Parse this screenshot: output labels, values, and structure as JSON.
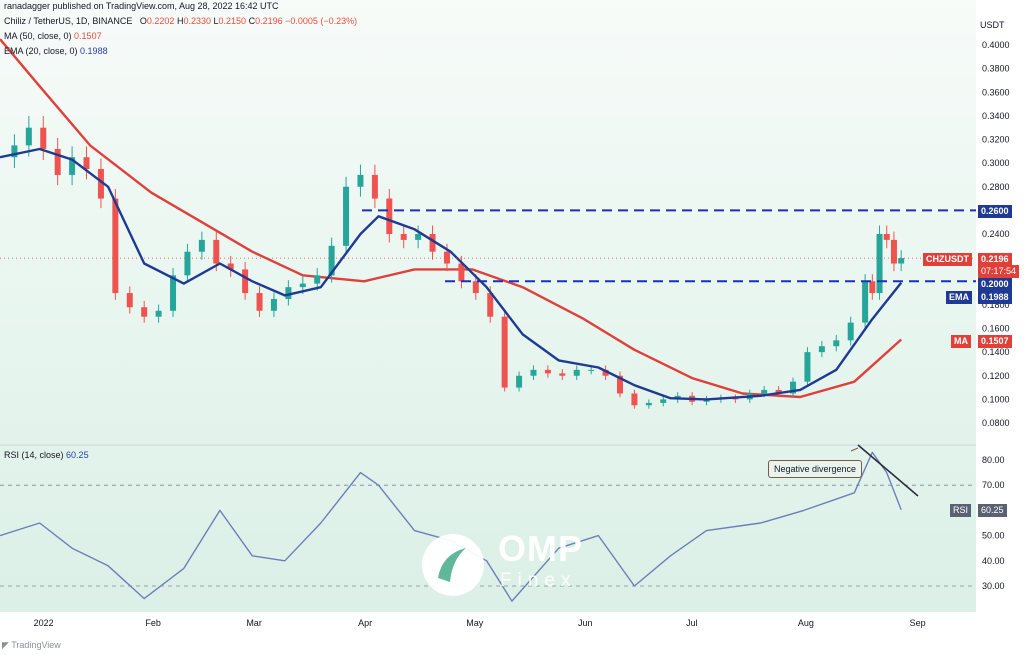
{
  "publisher_line": "ranadagger published on TradingView.com, Aug 28, 2022 16:42 UTC",
  "instrument": {
    "title": "Chiliz / TetherUS, 1D, BINANCE",
    "ohlc": [
      {
        "label": "O",
        "value": "0.2202"
      },
      {
        "label": "H",
        "value": "0.2330"
      },
      {
        "label": "L",
        "value": "0.2150"
      },
      {
        "label": "C",
        "value": "0.2196"
      }
    ],
    "change": "−0.0005 (−0.23%)"
  },
  "indicators": {
    "ma_label": "MA (50, close, 0)",
    "ma_value": "0.1507",
    "ema_label": "EMA (20, close, 0)",
    "ema_value": "0.1988",
    "rsi_label": "RSI (14, close)",
    "rsi_value": "60.25"
  },
  "price_tags": {
    "level_high": "0.2600",
    "symbol": "CHZUSDT",
    "last_price": "0.2196",
    "countdown": "07:17:54",
    "level_low": "0.2000",
    "ema_name": "EMA",
    "ema_value": "0.1988",
    "ma_name": "MA",
    "ma_value": "0.1507",
    "rsi_name": "RSI",
    "rsi_value": "60.25"
  },
  "annotation": "Negative divergence",
  "watermark": {
    "brand": "OMP",
    "sub": "Finex"
  },
  "footer_logo": "TradingView",
  "colors": {
    "up": "#26a69a",
    "down": "#ef5350",
    "ema": "#1f3a93",
    "ma": "#e0403a",
    "rsi": "#6d7fb8",
    "levels": "#1a2ec2"
  },
  "chart_data": [
    {
      "type": "candlestick",
      "title": "Chiliz / TetherUS, 1D, BINANCE",
      "y_unit": "USDT",
      "ylim": [
        0.07,
        0.42
      ],
      "y_ticks": [
        0.4,
        0.38,
        0.36,
        0.34,
        0.32,
        0.3,
        0.28,
        0.26,
        0.24,
        0.22,
        0.2,
        0.18,
        0.16,
        0.14,
        0.12,
        0.1,
        0.08
      ],
      "x_ticks": [
        "2022",
        "Feb",
        "Mar",
        "Apr",
        "May",
        "Jun",
        "Jul",
        "Aug",
        "Sep"
      ],
      "close_series": [
        [
          "2021-12-21",
          0.305
        ],
        [
          "2021-12-25",
          0.315
        ],
        [
          "2021-12-29",
          0.33
        ],
        [
          "2022-01-02",
          0.312
        ],
        [
          "2022-01-06",
          0.29
        ],
        [
          "2022-01-10",
          0.305
        ],
        [
          "2022-01-14",
          0.295
        ],
        [
          "2022-01-18",
          0.27
        ],
        [
          "2022-01-22",
          0.19
        ],
        [
          "2022-01-26",
          0.178
        ],
        [
          "2022-01-30",
          0.17
        ],
        [
          "2022-02-03",
          0.175
        ],
        [
          "2022-02-07",
          0.205
        ],
        [
          "2022-02-11",
          0.225
        ],
        [
          "2022-02-15",
          0.235
        ],
        [
          "2022-02-19",
          0.215
        ],
        [
          "2022-02-23",
          0.21
        ],
        [
          "2022-02-27",
          0.19
        ],
        [
          "2022-03-03",
          0.175
        ],
        [
          "2022-03-07",
          0.185
        ],
        [
          "2022-03-11",
          0.195
        ],
        [
          "2022-03-15",
          0.198
        ],
        [
          "2022-03-19",
          0.205
        ],
        [
          "2022-03-23",
          0.23
        ],
        [
          "2022-03-27",
          0.28
        ],
        [
          "2022-03-31",
          0.29
        ],
        [
          "2022-04-04",
          0.27
        ],
        [
          "2022-04-08",
          0.24
        ],
        [
          "2022-04-12",
          0.235
        ],
        [
          "2022-04-16",
          0.24
        ],
        [
          "2022-04-20",
          0.225
        ],
        [
          "2022-04-24",
          0.215
        ],
        [
          "2022-04-28",
          0.2
        ],
        [
          "2022-05-02",
          0.19
        ],
        [
          "2022-05-06",
          0.17
        ],
        [
          "2022-05-10",
          0.11
        ],
        [
          "2022-05-14",
          0.12
        ],
        [
          "2022-05-18",
          0.125
        ],
        [
          "2022-05-22",
          0.122
        ],
        [
          "2022-05-26",
          0.12
        ],
        [
          "2022-05-30",
          0.125
        ],
        [
          "2022-06-03",
          0.125
        ],
        [
          "2022-06-07",
          0.12
        ],
        [
          "2022-06-11",
          0.105
        ],
        [
          "2022-06-15",
          0.095
        ],
        [
          "2022-06-19",
          0.097
        ],
        [
          "2022-06-23",
          0.1
        ],
        [
          "2022-06-27",
          0.103
        ],
        [
          "2022-07-01",
          0.098
        ],
        [
          "2022-07-05",
          0.1
        ],
        [
          "2022-07-09",
          0.101
        ],
        [
          "2022-07-13",
          0.1
        ],
        [
          "2022-07-17",
          0.105
        ],
        [
          "2022-07-21",
          0.108
        ],
        [
          "2022-07-25",
          0.105
        ],
        [
          "2022-07-29",
          0.115
        ],
        [
          "2022-08-02",
          0.14
        ],
        [
          "2022-08-06",
          0.145
        ],
        [
          "2022-08-10",
          0.15
        ],
        [
          "2022-08-14",
          0.165
        ],
        [
          "2022-08-18",
          0.2
        ],
        [
          "2022-08-20",
          0.19
        ],
        [
          "2022-08-22",
          0.24
        ],
        [
          "2022-08-24",
          0.235
        ],
        [
          "2022-08-26",
          0.215
        ],
        [
          "2022-08-28",
          0.2196
        ]
      ],
      "horizontal_levels": [
        0.26,
        0.2
      ]
    },
    {
      "type": "line",
      "name": "EMA (20, close, 0)",
      "series": [
        [
          "2021-12-21",
          0.305
        ],
        [
          "2022-01-01",
          0.312
        ],
        [
          "2022-01-10",
          0.303
        ],
        [
          "2022-01-20",
          0.28
        ],
        [
          "2022-01-30",
          0.215
        ],
        [
          "2022-02-10",
          0.198
        ],
        [
          "2022-02-20",
          0.215
        ],
        [
          "2022-03-01",
          0.2
        ],
        [
          "2022-03-10",
          0.188
        ],
        [
          "2022-03-20",
          0.195
        ],
        [
          "2022-03-31",
          0.24
        ],
        [
          "2022-04-05",
          0.255
        ],
        [
          "2022-04-15",
          0.244
        ],
        [
          "2022-04-25",
          0.225
        ],
        [
          "2022-05-05",
          0.195
        ],
        [
          "2022-05-15",
          0.155
        ],
        [
          "2022-05-25",
          0.133
        ],
        [
          "2022-06-05",
          0.127
        ],
        [
          "2022-06-15",
          0.112
        ],
        [
          "2022-06-25",
          0.101
        ],
        [
          "2022-07-05",
          0.1
        ],
        [
          "2022-07-20",
          0.103
        ],
        [
          "2022-07-31",
          0.108
        ],
        [
          "2022-08-10",
          0.125
        ],
        [
          "2022-08-20",
          0.168
        ],
        [
          "2022-08-28",
          0.1988
        ]
      ]
    },
    {
      "type": "line",
      "name": "MA (50, close, 0)",
      "series": [
        [
          "2021-12-21",
          0.405
        ],
        [
          "2022-01-01",
          0.365
        ],
        [
          "2022-01-15",
          0.315
        ],
        [
          "2022-02-01",
          0.275
        ],
        [
          "2022-02-15",
          0.25
        ],
        [
          "2022-03-01",
          0.225
        ],
        [
          "2022-03-15",
          0.205
        ],
        [
          "2022-04-01",
          0.2
        ],
        [
          "2022-04-15",
          0.21
        ],
        [
          "2022-05-01",
          0.21
        ],
        [
          "2022-05-15",
          0.195
        ],
        [
          "2022-06-01",
          0.168
        ],
        [
          "2022-06-15",
          0.142
        ],
        [
          "2022-07-01",
          0.118
        ],
        [
          "2022-07-15",
          0.105
        ],
        [
          "2022-07-31",
          0.102
        ],
        [
          "2022-08-15",
          0.115
        ],
        [
          "2022-08-28",
          0.1507
        ]
      ]
    },
    {
      "type": "line",
      "name": "RSI (14, close)",
      "ylim": [
        22,
        88
      ],
      "y_ticks": [
        80,
        70,
        60,
        50,
        40,
        30
      ],
      "band_lines": [
        70,
        30
      ],
      "series": [
        [
          "2021-12-21",
          50
        ],
        [
          "2022-01-01",
          55
        ],
        [
          "2022-01-10",
          45
        ],
        [
          "2022-01-20",
          38
        ],
        [
          "2022-01-30",
          25
        ],
        [
          "2022-02-10",
          37
        ],
        [
          "2022-02-20",
          60
        ],
        [
          "2022-03-01",
          42
        ],
        [
          "2022-03-10",
          40
        ],
        [
          "2022-03-20",
          55
        ],
        [
          "2022-03-31",
          75
        ],
        [
          "2022-04-05",
          70
        ],
        [
          "2022-04-15",
          52
        ],
        [
          "2022-04-25",
          48
        ],
        [
          "2022-05-05",
          40
        ],
        [
          "2022-05-12",
          24
        ],
        [
          "2022-05-25",
          45
        ],
        [
          "2022-06-05",
          50
        ],
        [
          "2022-06-15",
          30
        ],
        [
          "2022-06-25",
          42
        ],
        [
          "2022-07-05",
          52
        ],
        [
          "2022-07-20",
          55
        ],
        [
          "2022-08-01",
          60
        ],
        [
          "2022-08-15",
          67
        ],
        [
          "2022-08-20",
          83
        ],
        [
          "2022-08-24",
          75
        ],
        [
          "2022-08-28",
          60.25
        ]
      ],
      "annotation": "Negative divergence"
    }
  ]
}
